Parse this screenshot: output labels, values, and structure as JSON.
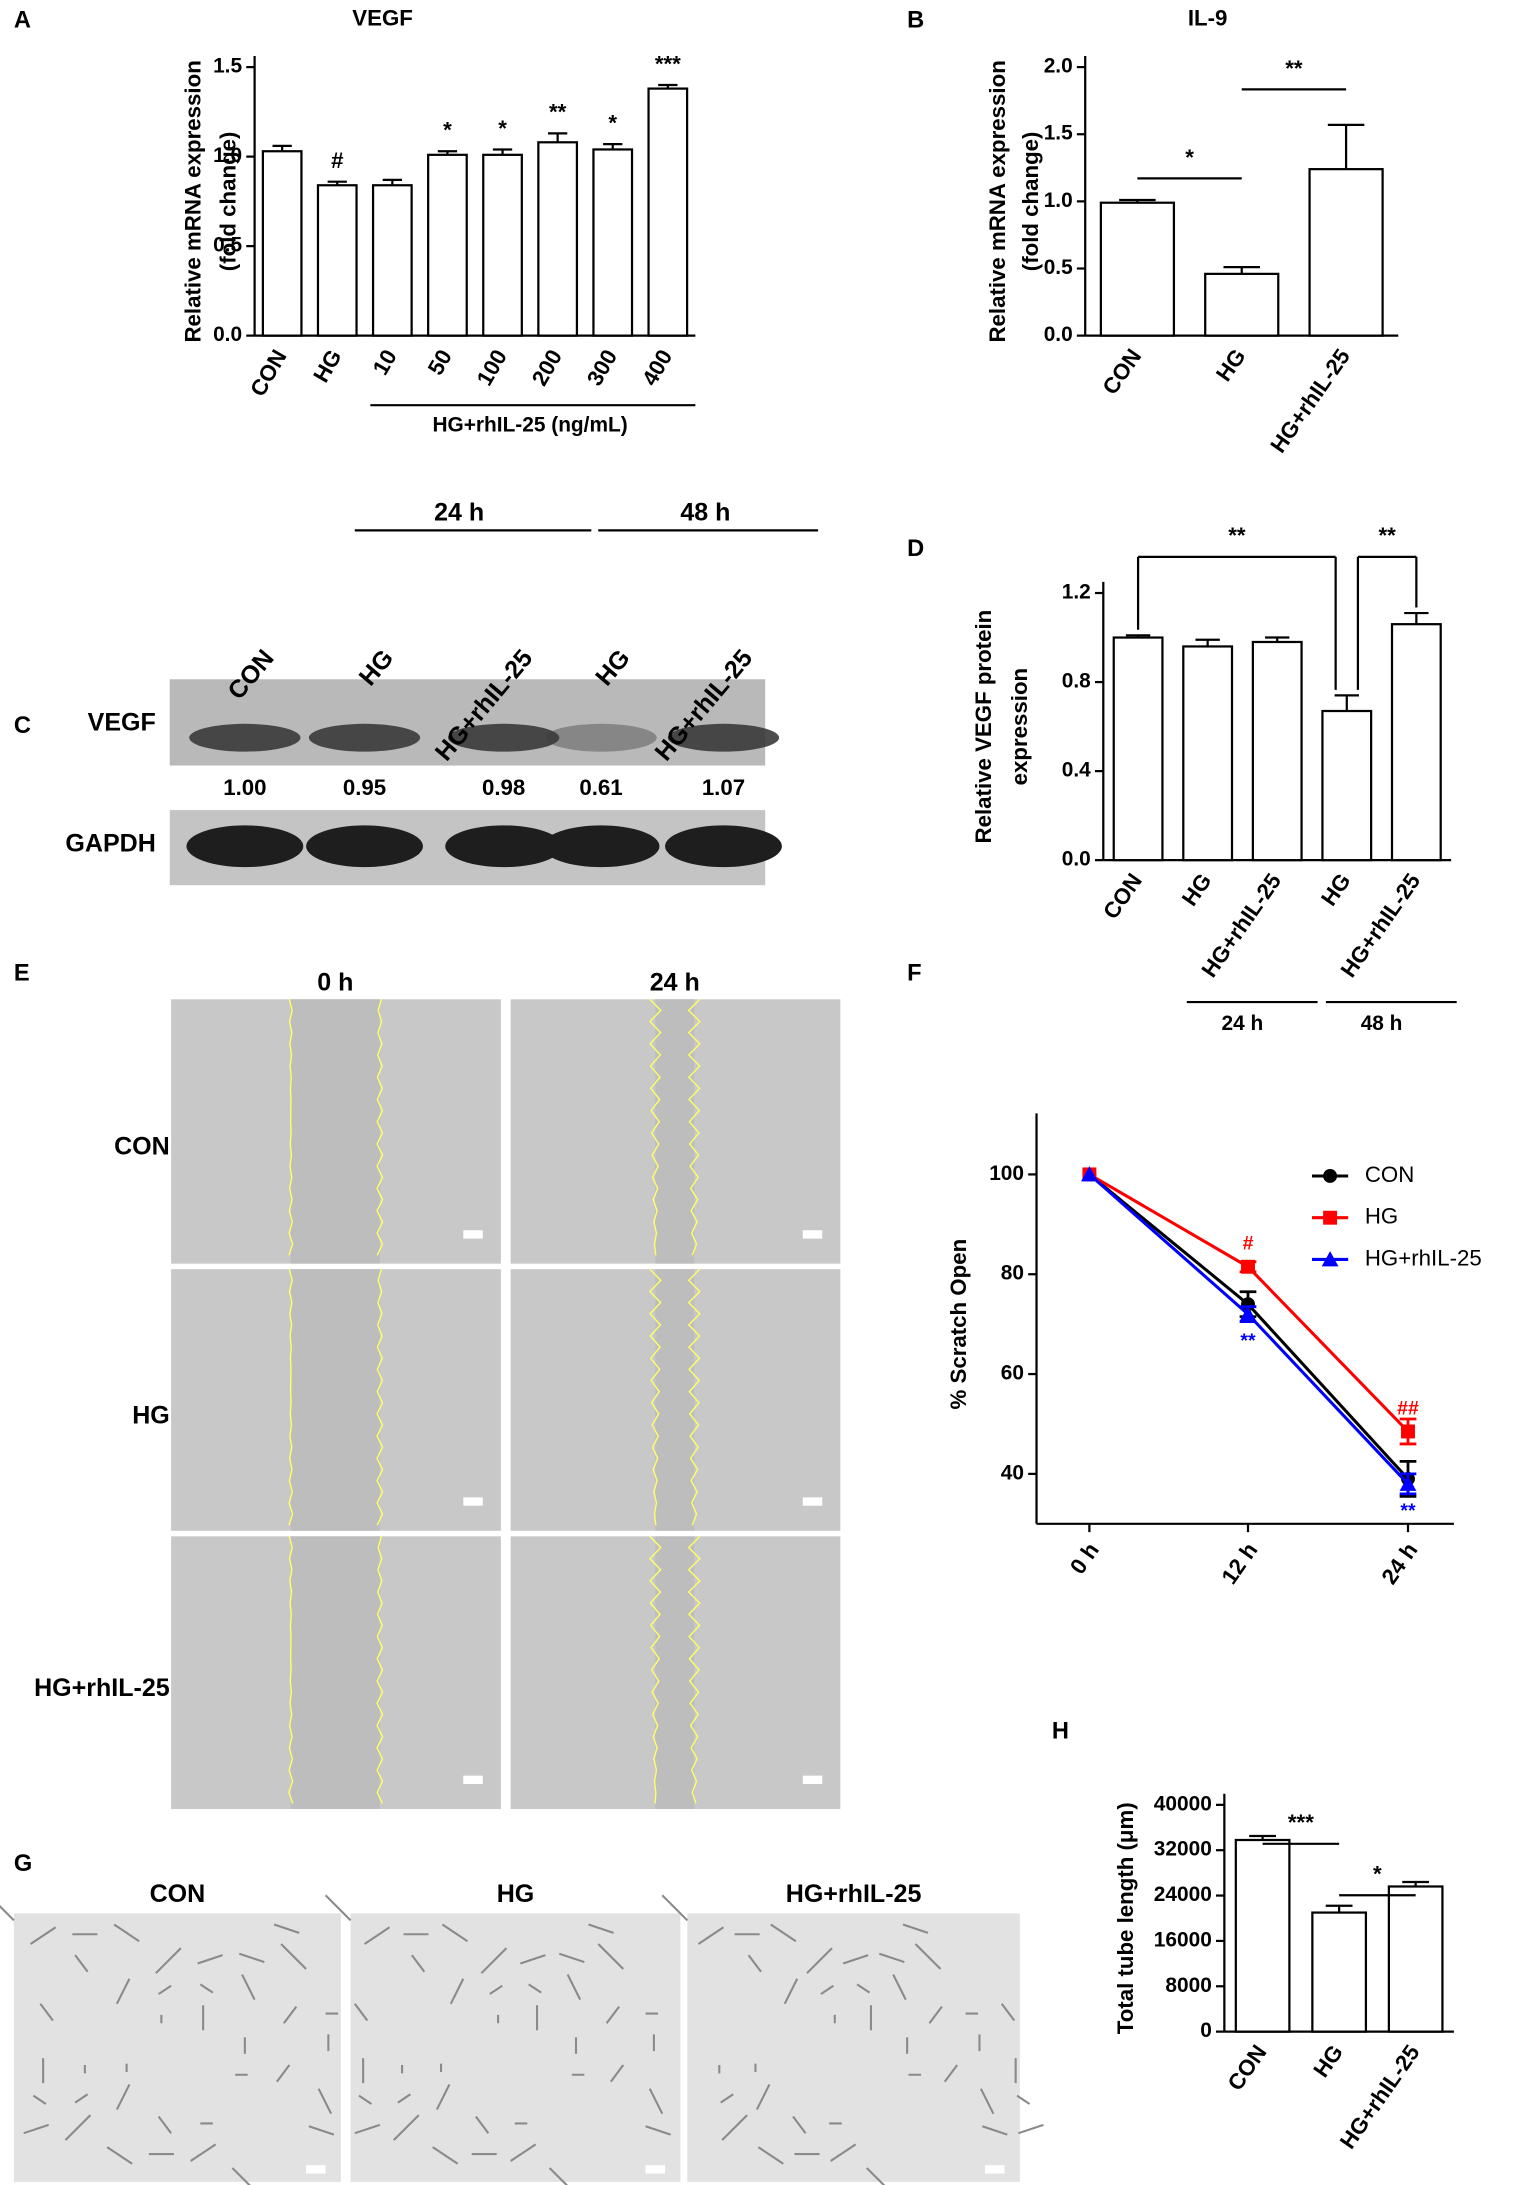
{
  "panel_labels": [
    "A",
    "B",
    "C",
    "D",
    "E",
    "F",
    "G",
    "H"
  ],
  "chart_data": [
    {
      "type": "bar",
      "title": "VEGF",
      "ylabel": [
        "Relative mRNA expression",
        "(fold change)"
      ],
      "categories": [
        "CON",
        "HG",
        "10",
        "50",
        "100",
        "200",
        "300",
        "400"
      ],
      "values": [
        1.03,
        0.84,
        0.84,
        1.01,
        1.01,
        1.08,
        1.04,
        1.38
      ],
      "errors": [
        0.03,
        0.02,
        0.03,
        0.02,
        0.03,
        0.05,
        0.03,
        0.02
      ],
      "annotations": [
        null,
        "#",
        null,
        "*",
        "*",
        "**",
        "*",
        "***"
      ],
      "group_label": "HG+rhIL-25 (ng/mL)",
      "color": "#ffffff",
      "ylim": [
        0,
        1.5
      ],
      "yticks": [
        {
          "value": 0,
          "label": "0.0"
        },
        0.5,
        {
          "value": 1,
          "label": "1.0"
        },
        1.5
      ]
    },
    {
      "type": "bar",
      "title": "IL-9",
      "ylabel": [
        "Relative mRNA expression",
        "(fold change)"
      ],
      "categories": [
        "CON",
        "HG",
        "HG+rhIL-25"
      ],
      "values": [
        0.99,
        0.46,
        1.24
      ],
      "errors": [
        0.02,
        0.05,
        0.33
      ],
      "significance": [
        "*",
        "**"
      ],
      "color": "#ffffff",
      "ylim": [
        0,
        2
      ],
      "yticks": [
        {
          "value": 0,
          "label": "0.0"
        },
        0.5,
        {
          "value": 1,
          "label": "1.0"
        },
        1.5,
        {
          "value": 2,
          "label": "2.0"
        }
      ]
    },
    {
      "type": "bar",
      "ylabel": [
        "Relative VEGF protein",
        "expression"
      ],
      "categories": [
        "CON",
        "HG",
        "HG+rhIL-25",
        "HG",
        "HG+rhIL-25"
      ],
      "values": [
        1.0,
        0.96,
        0.98,
        0.67,
        1.06
      ],
      "errors": [
        0.01,
        0.03,
        0.02,
        0.07,
        0.05
      ],
      "significance": [
        "**",
        "**"
      ],
      "group_labels": [
        "24 h",
        "48 h"
      ],
      "color": "#ffffff",
      "ylim": [
        0,
        1.2
      ],
      "yticks": [
        {
          "value": 0,
          "label": "0.0"
        },
        0.4,
        0.8,
        1.2
      ]
    },
    {
      "type": "line",
      "ylabel": "% Scratch Open",
      "categories": [
        "0 h",
        "12 h",
        "24 h"
      ],
      "series": [
        {
          "name": "CON",
          "color": "#000000",
          "marker": "circle",
          "values": [
            100,
            74,
            39
          ],
          "errors": [
            0,
            2.5,
            3.5
          ],
          "annotations": [
            null,
            null,
            null
          ]
        },
        {
          "name": "HG",
          "color": "#ff0000",
          "marker": "square",
          "values": [
            100,
            81.5,
            48.5
          ],
          "errors": [
            0,
            1,
            2.5
          ],
          "annotations": [
            null,
            "#",
            "##"
          ]
        },
        {
          "name": "HG+rhIL-25",
          "color": "#0000ff",
          "marker": "triangle",
          "values": [
            100,
            72,
            38
          ],
          "errors": [
            0,
            1.5,
            2
          ],
          "annotations": [
            null,
            "**",
            "**"
          ]
        }
      ],
      "ylim": [
        30,
        110
      ],
      "yticks": [
        40,
        60,
        80,
        100
      ],
      "legend": "upper right"
    },
    {
      "type": "bar",
      "ylabel": "Total tube length (μm)",
      "categories": [
        "CON",
        "HG",
        "HG+rhIL-25"
      ],
      "values": [
        33800,
        21000,
        25600
      ],
      "errors": [
        700,
        1200,
        800
      ],
      "significance": [
        "***",
        "*"
      ],
      "color": "#ffffff",
      "ylim": [
        0,
        40000
      ],
      "yticks": [
        0,
        8000,
        16000,
        24000,
        32000,
        40000
      ]
    }
  ],
  "western_blot": {
    "columns": [
      "CON",
      "HG",
      "HG+rhIL-25",
      "HG",
      "HG+rhIL-25"
    ],
    "group_labels": [
      "24 h",
      "48 h"
    ],
    "rows": [
      "VEGF",
      "GAPDH"
    ],
    "densitometry": [
      "1.00",
      "0.95",
      "0.98",
      "0.61",
      "1.07"
    ]
  },
  "scratch_assay": {
    "time_labels": [
      "0 h",
      "24 h"
    ],
    "row_labels": [
      "CON",
      "HG",
      "HG+rhIL-25"
    ]
  },
  "tube_assay": {
    "labels": [
      "CON",
      "HG",
      "HG+rhIL-25"
    ]
  }
}
